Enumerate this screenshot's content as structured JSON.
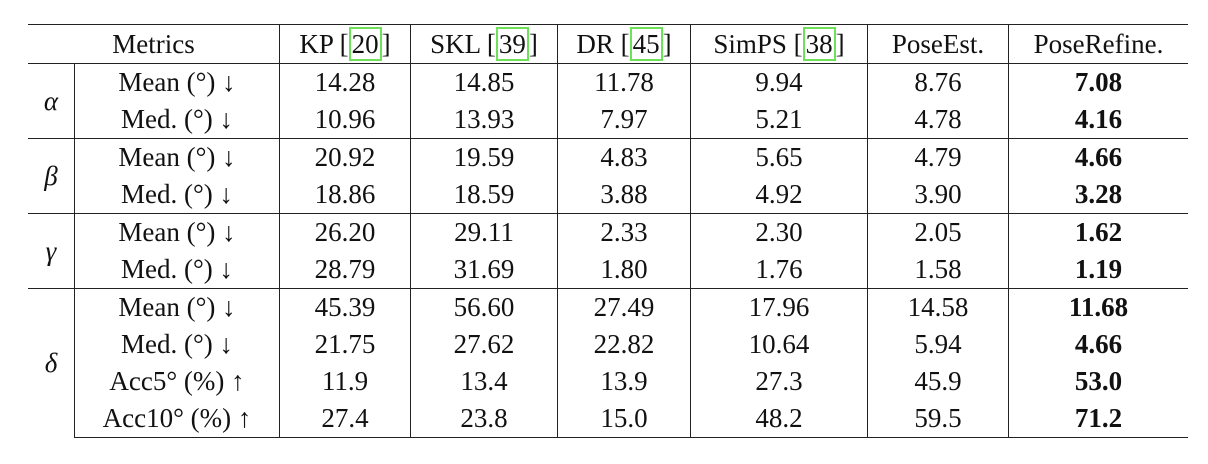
{
  "header": {
    "metrics": "Metrics",
    "methods": [
      {
        "name": "KP [",
        "cite": "20",
        "close": "]"
      },
      {
        "name": "SKL [",
        "cite": "39",
        "close": "]"
      },
      {
        "name": "DR [",
        "cite": "45",
        "close": "]"
      },
      {
        "name": "SimPS [",
        "cite": "38",
        "close": "]"
      },
      {
        "name": "PoseEst.",
        "cite": "",
        "close": ""
      },
      {
        "name": "PoseRefine.",
        "cite": "",
        "close": ""
      }
    ]
  },
  "groups": [
    {
      "symbol": "α",
      "rows": [
        {
          "metric": "Mean (°) ↓",
          "values": [
            "14.28",
            "14.85",
            "11.78",
            "9.94",
            "8.76",
            "7.08"
          ]
        },
        {
          "metric": "Med. (°) ↓",
          "values": [
            "10.96",
            "13.93",
            "7.97",
            "5.21",
            "4.78",
            "4.16"
          ]
        }
      ]
    },
    {
      "symbol": "β",
      "rows": [
        {
          "metric": "Mean (°) ↓",
          "values": [
            "20.92",
            "19.59",
            "4.83",
            "5.65",
            "4.79",
            "4.66"
          ]
        },
        {
          "metric": "Med. (°) ↓",
          "values": [
            "18.86",
            "18.59",
            "3.88",
            "4.92",
            "3.90",
            "3.28"
          ]
        }
      ]
    },
    {
      "symbol": "γ",
      "rows": [
        {
          "metric": "Mean (°) ↓",
          "values": [
            "26.20",
            "29.11",
            "2.33",
            "2.30",
            "2.05",
            "1.62"
          ]
        },
        {
          "metric": "Med. (°) ↓",
          "values": [
            "28.79",
            "31.69",
            "1.80",
            "1.76",
            "1.58",
            "1.19"
          ]
        }
      ]
    },
    {
      "symbol": "δ",
      "rows": [
        {
          "metric": "Mean (°) ↓",
          "values": [
            "45.39",
            "56.60",
            "27.49",
            "17.96",
            "14.58",
            "11.68"
          ]
        },
        {
          "metric": "Med. (°) ↓",
          "values": [
            "21.75",
            "27.62",
            "22.82",
            "10.64",
            "5.94",
            "4.66"
          ]
        },
        {
          "metric": "Acc5° (%) ↑",
          "values": [
            "11.9",
            "13.4",
            "13.9",
            "27.3",
            "45.9",
            "53.0"
          ]
        },
        {
          "metric": "Acc10° (%) ↑",
          "values": [
            "27.4",
            "23.8",
            "15.0",
            "48.2",
            "59.5",
            "71.2"
          ]
        }
      ]
    }
  ],
  "style": {
    "best_column": 5,
    "cite_box_color": "#6ee05a"
  }
}
